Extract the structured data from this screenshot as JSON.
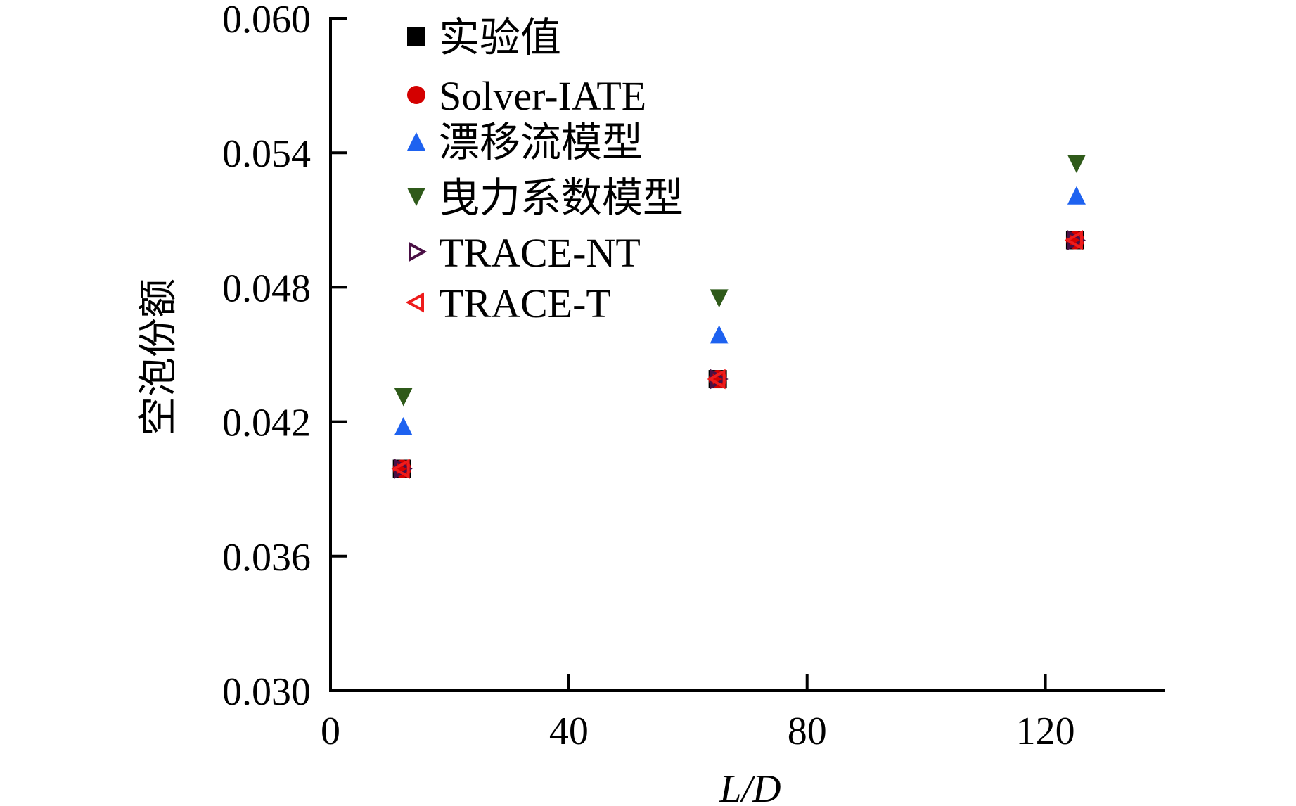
{
  "chart_data": {
    "type": "scatter",
    "title": "",
    "xlabel": "L/D",
    "ylabel": "空泡份额",
    "xlim": [
      0,
      140
    ],
    "ylim": [
      0.03,
      0.06
    ],
    "xticks": [
      "0",
      "40",
      "80",
      "120"
    ],
    "yticks": [
      "0.030",
      "0.036",
      "0.042",
      "0.048",
      "0.054",
      "0.060"
    ],
    "grid": false,
    "legend_position": "top-left",
    "x": [
      12,
      65,
      125
    ],
    "series": [
      {
        "name": "实验值",
        "marker": "square",
        "color": "#000000",
        "values": [
          0.0399,
          0.0439,
          0.0501
        ]
      },
      {
        "name": "Solver-IATE",
        "marker": "circle",
        "color": "#d40000",
        "values": [
          0.0399,
          0.0439,
          0.0501
        ]
      },
      {
        "name": "漂移流模型",
        "marker": "triangle-up",
        "color": "#1e62f0",
        "values": [
          0.0418,
          0.0459,
          0.0521
        ]
      },
      {
        "name": "曳力系数模型",
        "marker": "triangle-down",
        "color": "#2f5a1a",
        "values": [
          0.0431,
          0.0475,
          0.0535
        ]
      },
      {
        "name": "TRACE-NT",
        "marker": "triangle-right-open",
        "color": "#4a1045",
        "values": [
          0.0399,
          0.0439,
          0.0501
        ]
      },
      {
        "name": "TRACE-T",
        "marker": "triangle-left-open",
        "color": "#ee1c1c",
        "values": [
          0.0399,
          0.0439,
          0.0501
        ]
      }
    ]
  }
}
